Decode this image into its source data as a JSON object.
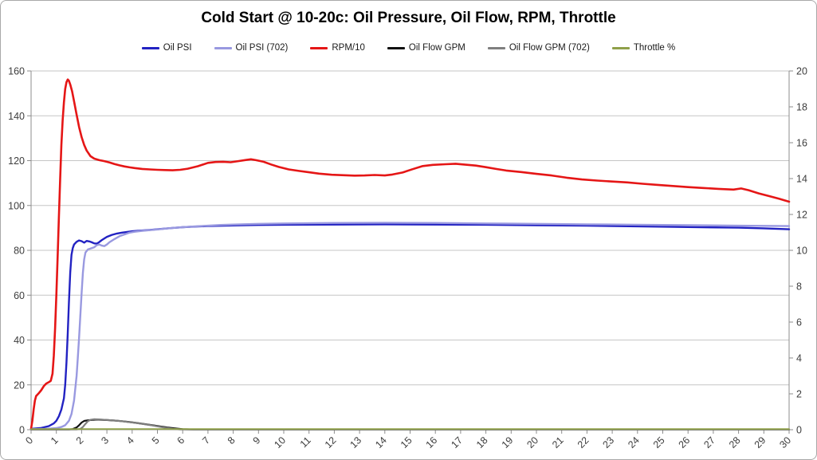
{
  "chart_data": {
    "type": "line",
    "title": "Cold Start @ 10-20c: Oil Pressure, Oil Flow, RPM, Throttle",
    "xlabel": "",
    "ylabel_left": "",
    "ylabel_right": "",
    "xlim": [
      0,
      30
    ],
    "left_ylim": [
      0,
      160
    ],
    "right_ylim": [
      0,
      20
    ],
    "x_ticks": [
      0,
      1,
      2,
      3,
      4,
      5,
      6,
      7,
      8,
      9,
      10,
      11,
      12,
      13,
      14,
      15,
      16,
      17,
      18,
      19,
      20,
      21,
      22,
      23,
      24,
      25,
      26,
      27,
      28,
      29,
      30
    ],
    "left_yticks": [
      0,
      20,
      40,
      60,
      80,
      100,
      120,
      140,
      160
    ],
    "right_yticks": [
      0,
      2,
      4,
      6,
      8,
      10,
      12,
      14,
      16,
      18,
      20
    ],
    "grid": true,
    "legend_position": "top",
    "colors": {
      "grid": "#c6c6c6",
      "axis": "#8c8c8c",
      "tick_text": "#3d3d3d"
    },
    "series": [
      {
        "name": "Oil PSI",
        "color": "#2222c2",
        "width": 2.4,
        "axis": "left",
        "points": [
          [
            0,
            0.4
          ],
          [
            0.4,
            0.8
          ],
          [
            0.7,
            1.6
          ],
          [
            0.9,
            2.8
          ],
          [
            1.0,
            4
          ],
          [
            1.1,
            6
          ],
          [
            1.2,
            9
          ],
          [
            1.3,
            14
          ],
          [
            1.35,
            20
          ],
          [
            1.4,
            30
          ],
          [
            1.45,
            43
          ],
          [
            1.5,
            57
          ],
          [
            1.55,
            70
          ],
          [
            1.6,
            78
          ],
          [
            1.65,
            81
          ],
          [
            1.7,
            82.6
          ],
          [
            1.8,
            83.8
          ],
          [
            1.9,
            84.4
          ],
          [
            2.0,
            84.1
          ],
          [
            2.1,
            83.4
          ],
          [
            2.2,
            84.2
          ],
          [
            2.3,
            84.0
          ],
          [
            2.4,
            83.6
          ],
          [
            2.5,
            83.1
          ],
          [
            2.6,
            83.0
          ],
          [
            2.7,
            83.7
          ],
          [
            2.8,
            84.6
          ],
          [
            2.9,
            85.3
          ],
          [
            3.0,
            86.0
          ],
          [
            3.2,
            86.9
          ],
          [
            3.4,
            87.5
          ],
          [
            3.6,
            87.9
          ],
          [
            3.8,
            88.2
          ],
          [
            4.0,
            88.5
          ],
          [
            4.3,
            88.8
          ],
          [
            4.7,
            89.1
          ],
          [
            5.0,
            89.4
          ],
          [
            5.5,
            89.9
          ],
          [
            6.0,
            90.3
          ],
          [
            6.5,
            90.6
          ],
          [
            7.0,
            90.8
          ],
          [
            8.0,
            91.1
          ],
          [
            9.0,
            91.3
          ],
          [
            10,
            91.4
          ],
          [
            12,
            91.5
          ],
          [
            14,
            91.6
          ],
          [
            16,
            91.5
          ],
          [
            18,
            91.4
          ],
          [
            20,
            91.2
          ],
          [
            22,
            91.0
          ],
          [
            24,
            90.7
          ],
          [
            26,
            90.4
          ],
          [
            28,
            90.1
          ],
          [
            29,
            89.8
          ],
          [
            30,
            89.4
          ]
        ]
      },
      {
        "name": "Oil PSI (702)",
        "color": "#9999e0",
        "width": 2.4,
        "axis": "left",
        "points": [
          [
            0,
            0.2
          ],
          [
            0.6,
            0.4
          ],
          [
            1.0,
            0.7
          ],
          [
            1.2,
            1.2
          ],
          [
            1.35,
            2
          ],
          [
            1.5,
            4
          ],
          [
            1.6,
            7
          ],
          [
            1.7,
            13
          ],
          [
            1.8,
            24
          ],
          [
            1.85,
            32
          ],
          [
            1.9,
            41
          ],
          [
            1.95,
            51
          ],
          [
            2.0,
            61
          ],
          [
            2.05,
            70
          ],
          [
            2.1,
            76
          ],
          [
            2.15,
            79
          ],
          [
            2.25,
            80.4
          ],
          [
            2.4,
            81.0
          ],
          [
            2.5,
            81.4
          ],
          [
            2.6,
            82.3
          ],
          [
            2.7,
            82.6
          ],
          [
            2.8,
            82.1
          ],
          [
            2.9,
            81.9
          ],
          [
            3.0,
            82.6
          ],
          [
            3.1,
            83.6
          ],
          [
            3.3,
            85.0
          ],
          [
            3.5,
            86.3
          ],
          [
            3.7,
            87.1
          ],
          [
            3.9,
            87.9
          ],
          [
            4.1,
            88.3
          ],
          [
            4.4,
            88.7
          ],
          [
            4.7,
            89.0
          ],
          [
            5.0,
            89.3
          ],
          [
            5.5,
            89.9
          ],
          [
            6.0,
            90.3
          ],
          [
            6.5,
            90.7
          ],
          [
            7.0,
            91.0
          ],
          [
            7.5,
            91.3
          ],
          [
            8.0,
            91.5
          ],
          [
            9.0,
            91.8
          ],
          [
            10,
            92.0
          ],
          [
            12,
            92.2
          ],
          [
            14,
            92.3
          ],
          [
            16,
            92.2
          ],
          [
            18,
            92.0
          ],
          [
            20,
            91.8
          ],
          [
            22,
            91.6
          ],
          [
            24,
            91.4
          ],
          [
            26,
            91.2
          ],
          [
            28,
            91.0
          ],
          [
            29,
            90.9
          ],
          [
            30,
            90.8
          ]
        ]
      },
      {
        "name": "RPM/10",
        "color": "#e51616",
        "width": 2.6,
        "axis": "left",
        "points": [
          [
            0,
            0.5
          ],
          [
            0.05,
            4
          ],
          [
            0.1,
            9
          ],
          [
            0.15,
            13
          ],
          [
            0.2,
            15
          ],
          [
            0.3,
            16.2
          ],
          [
            0.4,
            17.6
          ],
          [
            0.5,
            19.4
          ],
          [
            0.6,
            20.6
          ],
          [
            0.7,
            21.2
          ],
          [
            0.78,
            21.8
          ],
          [
            0.85,
            25
          ],
          [
            0.9,
            33
          ],
          [
            0.95,
            45
          ],
          [
            1.0,
            60
          ],
          [
            1.05,
            77
          ],
          [
            1.1,
            95
          ],
          [
            1.15,
            112
          ],
          [
            1.2,
            127
          ],
          [
            1.25,
            138
          ],
          [
            1.3,
            146
          ],
          [
            1.35,
            152
          ],
          [
            1.4,
            155
          ],
          [
            1.45,
            156.2
          ],
          [
            1.5,
            155.6
          ],
          [
            1.55,
            154
          ],
          [
            1.62,
            151
          ],
          [
            1.7,
            146.5
          ],
          [
            1.8,
            140.5
          ],
          [
            1.9,
            135
          ],
          [
            2.0,
            130.5
          ],
          [
            2.1,
            127
          ],
          [
            2.2,
            124.5
          ],
          [
            2.35,
            122
          ],
          [
            2.5,
            120.9
          ],
          [
            2.7,
            120.2
          ],
          [
            2.9,
            119.8
          ],
          [
            3.1,
            119.2
          ],
          [
            3.3,
            118.5
          ],
          [
            3.5,
            117.9
          ],
          [
            3.7,
            117.4
          ],
          [
            3.9,
            117.0
          ],
          [
            4.1,
            116.7
          ],
          [
            4.4,
            116.3
          ],
          [
            4.7,
            116.1
          ],
          [
            5.0,
            115.9
          ],
          [
            5.3,
            115.8
          ],
          [
            5.6,
            115.7
          ],
          [
            5.9,
            115.9
          ],
          [
            6.2,
            116.4
          ],
          [
            6.6,
            117.5
          ],
          [
            7.0,
            119.0
          ],
          [
            7.3,
            119.4
          ],
          [
            7.6,
            119.5
          ],
          [
            7.9,
            119.3
          ],
          [
            8.2,
            119.8
          ],
          [
            8.5,
            120.3
          ],
          [
            8.7,
            120.6
          ],
          [
            8.9,
            120.2
          ],
          [
            9.2,
            119.5
          ],
          [
            9.5,
            118.3
          ],
          [
            9.8,
            117.2
          ],
          [
            10.2,
            116.1
          ],
          [
            10.6,
            115.4
          ],
          [
            11.0,
            114.8
          ],
          [
            11.4,
            114.2
          ],
          [
            11.9,
            113.7
          ],
          [
            12.4,
            113.5
          ],
          [
            12.8,
            113.3
          ],
          [
            13.2,
            113.4
          ],
          [
            13.6,
            113.6
          ],
          [
            14.0,
            113.4
          ],
          [
            14.3,
            113.8
          ],
          [
            14.7,
            114.7
          ],
          [
            15.1,
            116.2
          ],
          [
            15.5,
            117.6
          ],
          [
            15.9,
            118.1
          ],
          [
            16.4,
            118.4
          ],
          [
            16.8,
            118.6
          ],
          [
            17.2,
            118.2
          ],
          [
            17.6,
            117.8
          ],
          [
            18.0,
            117.1
          ],
          [
            18.4,
            116.3
          ],
          [
            18.8,
            115.6
          ],
          [
            19.4,
            114.9
          ],
          [
            20.0,
            114.1
          ],
          [
            20.6,
            113.4
          ],
          [
            21.2,
            112.4
          ],
          [
            21.8,
            111.6
          ],
          [
            22.4,
            111.1
          ],
          [
            23.0,
            110.7
          ],
          [
            23.6,
            110.3
          ],
          [
            24.2,
            109.7
          ],
          [
            24.8,
            109.2
          ],
          [
            25.4,
            108.7
          ],
          [
            26.0,
            108.2
          ],
          [
            26.6,
            107.8
          ],
          [
            27.2,
            107.4
          ],
          [
            27.8,
            107.1
          ],
          [
            28.1,
            107.6
          ],
          [
            28.4,
            106.8
          ],
          [
            28.8,
            105.4
          ],
          [
            29.2,
            104.2
          ],
          [
            29.6,
            103.0
          ],
          [
            30,
            101.7
          ]
        ]
      },
      {
        "name": "Oil Flow GPM",
        "color": "#111111",
        "width": 2.2,
        "axis": "left",
        "points": [
          [
            0,
            0.1
          ],
          [
            1.5,
            0.1
          ],
          [
            1.65,
            0.3
          ],
          [
            1.8,
            1.0
          ],
          [
            1.9,
            2.0
          ],
          [
            2.0,
            3.2
          ],
          [
            2.1,
            3.9
          ],
          [
            2.25,
            4.2
          ],
          [
            2.45,
            4.4
          ],
          [
            2.6,
            4.5
          ],
          [
            2.8,
            4.4
          ],
          [
            3.0,
            4.3
          ],
          [
            3.3,
            4.1
          ],
          [
            3.6,
            3.8
          ],
          [
            3.9,
            3.4
          ],
          [
            4.2,
            3.0
          ],
          [
            4.5,
            2.5
          ],
          [
            4.8,
            2.0
          ],
          [
            5.1,
            1.5
          ],
          [
            5.4,
            1.0
          ],
          [
            5.7,
            0.6
          ],
          [
            6.0,
            0.2
          ],
          [
            6.4,
            0.1
          ],
          [
            8,
            0.1
          ],
          [
            12,
            0.1
          ],
          [
            16,
            0.1
          ],
          [
            20,
            0.1
          ],
          [
            24,
            0.1
          ],
          [
            28,
            0.1
          ],
          [
            30,
            0.1
          ]
        ]
      },
      {
        "name": "Oil Flow GPM (702)",
        "color": "#7f7f7f",
        "width": 2.2,
        "axis": "left",
        "points": [
          [
            0,
            0.05
          ],
          [
            1.8,
            0.1
          ],
          [
            1.95,
            0.4
          ],
          [
            2.05,
            1.2
          ],
          [
            2.15,
            2.6
          ],
          [
            2.25,
            3.8
          ],
          [
            2.35,
            4.4
          ],
          [
            2.5,
            4.7
          ],
          [
            2.7,
            4.6
          ],
          [
            2.9,
            4.4
          ],
          [
            3.2,
            4.2
          ],
          [
            3.5,
            3.9
          ],
          [
            3.8,
            3.5
          ],
          [
            4.1,
            3.1
          ],
          [
            4.4,
            2.6
          ],
          [
            4.7,
            2.1
          ],
          [
            5.0,
            1.5
          ],
          [
            5.3,
            0.9
          ],
          [
            5.6,
            0.4
          ],
          [
            5.9,
            0.15
          ],
          [
            6.2,
            0.1
          ],
          [
            8,
            0.1
          ],
          [
            12,
            0.1
          ],
          [
            16,
            0.1
          ],
          [
            20,
            0.1
          ],
          [
            24,
            0.1
          ],
          [
            28,
            0.1
          ],
          [
            30,
            0.1
          ]
        ]
      },
      {
        "name": "Throttle %",
        "color": "#8fa04a",
        "width": 1.8,
        "axis": "left",
        "points": [
          [
            0,
            0.3
          ],
          [
            5,
            0.3
          ],
          [
            10,
            0.3
          ],
          [
            15,
            0.3
          ],
          [
            20,
            0.3
          ],
          [
            25,
            0.3
          ],
          [
            30,
            0.3
          ]
        ]
      }
    ]
  }
}
